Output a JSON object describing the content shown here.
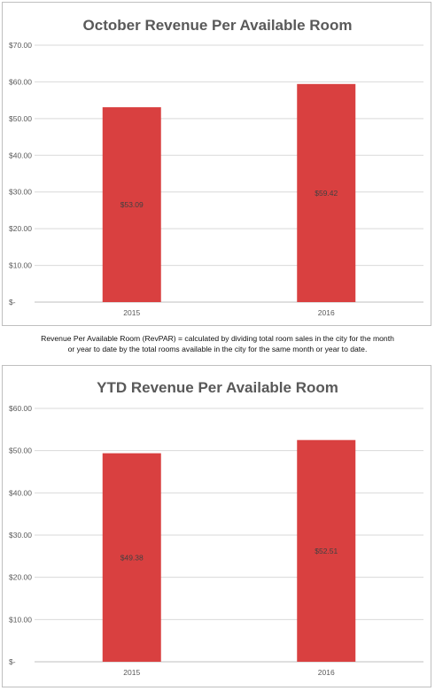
{
  "chart_data": [
    {
      "type": "bar",
      "title": "October Revenue Per Available Room",
      "categories": [
        "2015",
        "2016"
      ],
      "values": [
        53.09,
        59.42
      ],
      "data_labels": [
        "$53.09",
        "$59.42"
      ],
      "yticks": [
        "$-",
        "$10.00",
        "$20.00",
        "$30.00",
        "$40.00",
        "$50.00",
        "$60.00",
        "$70.00"
      ],
      "ylim": [
        0,
        70
      ],
      "grid": true,
      "legend": "none",
      "bar_color": "#d94040"
    },
    {
      "type": "bar",
      "title": "YTD Revenue Per Available Room",
      "categories": [
        "2015",
        "2016"
      ],
      "values": [
        49.38,
        52.51
      ],
      "data_labels": [
        "$49.38",
        "$52.51"
      ],
      "yticks": [
        "$-",
        "$10.00",
        "$20.00",
        "$30.00",
        "$40.00",
        "$50.00",
        "$60.00"
      ],
      "ylim": [
        0,
        60
      ],
      "grid": true,
      "legend": "none",
      "bar_color": "#d94040"
    }
  ],
  "note": {
    "line1": "Revenue Per Available Room (RevPAR) = calculated by dividing total room sales in the city for the month",
    "line2": "or year to date by the total rooms available in the city for the same month or year to date."
  }
}
